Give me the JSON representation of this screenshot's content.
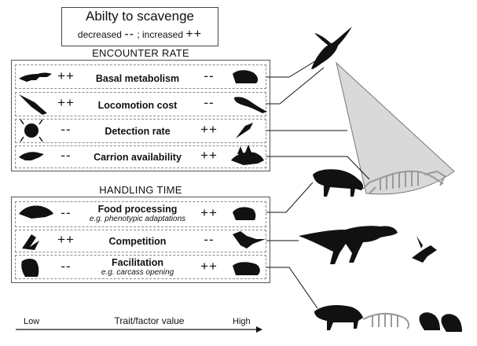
{
  "legend": {
    "title": "Abilty to scavenge",
    "decreased_label": "decreased",
    "decreased_symbol": "--",
    "separator": ";",
    "increased_label": "increased",
    "increased_symbol": "++"
  },
  "encounter_rate": {
    "title": "ENCOUNTER RATE",
    "rows": [
      {
        "label": "Basal metabolism",
        "left_sign": "++",
        "right_sign": "--",
        "left_icon": "crocodile-icon",
        "right_icon": "mammal-icon"
      },
      {
        "label": "Locomotion cost",
        "left_sign": "++",
        "right_sign": "--",
        "left_icon": "pterosaur-icon",
        "right_icon": "lizard-icon"
      },
      {
        "label": "Detection rate",
        "left_sign": "--",
        "right_sign": "++",
        "left_icon": "beetle-icon",
        "right_icon": "bird-icon"
      },
      {
        "label": "Carrion availability",
        "left_sign": "--",
        "right_sign": "++",
        "left_icon": "small-dinosaur-icon",
        "right_icon": "stegosaur-icon"
      }
    ]
  },
  "handling_time": {
    "title": "HANDLING TIME",
    "rows": [
      {
        "label": "Food processing",
        "sublabel": "e.g. phenotypic adaptations",
        "left_sign": "--",
        "right_sign": "++",
        "left_icon": "shark-icon",
        "right_icon": "hyena-icon"
      },
      {
        "label": "Competition",
        "sublabel": "",
        "left_sign": "++",
        "right_sign": "--",
        "left_icon": "flying-bird-icon",
        "right_icon": "theropod-icon"
      },
      {
        "label": "Facilitation",
        "sublabel": "e.g. carcass opening",
        "left_sign": "--",
        "right_sign": "++",
        "left_icon": "vulture-icon",
        "right_icon": "badger-icon"
      }
    ]
  },
  "axis": {
    "low": "Low",
    "title": "Trait/factor value",
    "high": "High"
  },
  "colors": {
    "cone_fill": "#d9d9d9",
    "silhouette": "#111111",
    "skeleton": "#9a9a9a"
  }
}
